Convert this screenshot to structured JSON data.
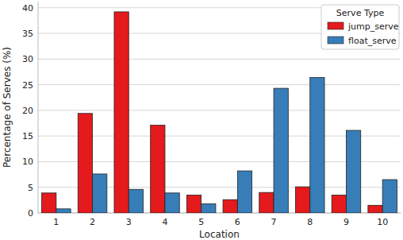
{
  "chart_data": {
    "type": "bar",
    "x_label": "Location",
    "y_label": "Percentage of Serves (%)",
    "categories": [
      "1",
      "2",
      "3",
      "4",
      "5",
      "6",
      "7",
      "8",
      "9",
      "10"
    ],
    "series": [
      {
        "name": "jump_serve",
        "color": "#e41a1c",
        "values": [
          3.9,
          19.4,
          39.2,
          17.1,
          3.5,
          2.6,
          4.0,
          5.1,
          3.5,
          1.5
        ]
      },
      {
        "name": "float_serve",
        "color": "#377eb8",
        "values": [
          0.8,
          7.6,
          4.6,
          3.9,
          1.8,
          8.2,
          24.3,
          26.4,
          16.1,
          6.5
        ]
      }
    ],
    "ylim": [
      0,
      41.2
    ],
    "yticks": [
      0,
      5,
      10,
      15,
      20,
      25,
      30,
      35,
      40
    ],
    "grid": true,
    "legend": "upper right",
    "legend_title": "Serve Type"
  }
}
